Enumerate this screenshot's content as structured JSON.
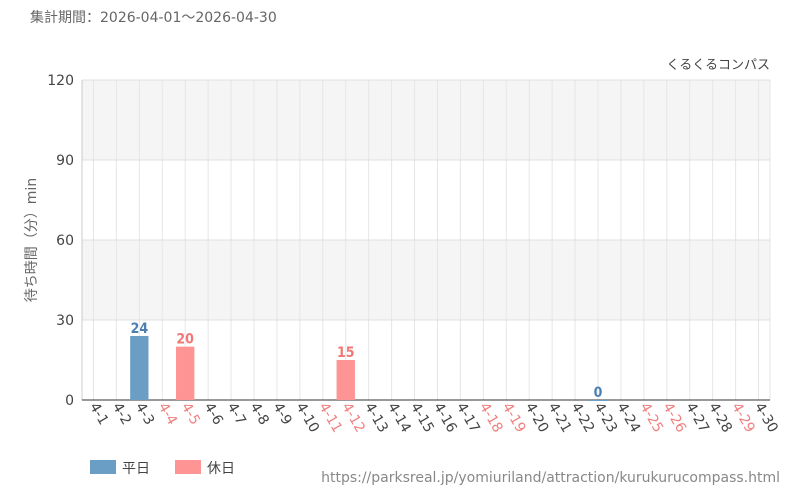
{
  "chart_data": {
    "type": "bar",
    "period": "集計期間：2026-04-01～2026-04-30",
    "brand": "くるくるコンパス",
    "y_label": "待ち時間（分）min",
    "source": "https://parksreal.jp/yomiuriland/attraction/kurukurucompass.html",
    "categories": [
      "4-1",
      "4-2",
      "4-3",
      "4-4",
      "4-5",
      "4-6",
      "4-7",
      "4-8",
      "4-9",
      "4-10",
      "4-11",
      "4-12",
      "4-13",
      "4-14",
      "4-15",
      "4-16",
      "4-17",
      "4-18",
      "4-19",
      "4-20",
      "4-21",
      "4-22",
      "4-23",
      "4-24",
      "4-25",
      "4-26",
      "4-27",
      "4-28",
      "4-29",
      "4-30"
    ],
    "category_colors": [
      "#444",
      "#444",
      "#444",
      "#f08080",
      "#f08080",
      "#444",
      "#444",
      "#444",
      "#444",
      "#444",
      "#f08080",
      "#f08080",
      "#444",
      "#444",
      "#444",
      "#444",
      "#444",
      "#f08080",
      "#f08080",
      "#444",
      "#444",
      "#444",
      "#444",
      "#444",
      "#f08080",
      "#f08080",
      "#444",
      "#444",
      "#f08080",
      "#444"
    ],
    "series": [
      {
        "name": "平日",
        "color": "#6a9ec5",
        "label_color": "#4a7fb0",
        "values": [
          null,
          null,
          24,
          null,
          null,
          null,
          null,
          null,
          null,
          null,
          null,
          null,
          null,
          null,
          null,
          null,
          null,
          null,
          null,
          null,
          null,
          null,
          0,
          null,
          null,
          null,
          null,
          null,
          null,
          null
        ]
      },
      {
        "name": "休日",
        "color": "#ff9494",
        "label_color": "#f07878",
        "values": [
          null,
          null,
          null,
          null,
          20,
          null,
          null,
          null,
          null,
          null,
          null,
          15,
          null,
          null,
          null,
          null,
          null,
          null,
          null,
          null,
          null,
          null,
          null,
          null,
          null,
          null,
          null,
          null,
          null,
          null
        ]
      }
    ],
    "ylim": [
      0,
      120
    ],
    "yticks": [
      0,
      30,
      60,
      90,
      120
    ],
    "grid": true
  }
}
